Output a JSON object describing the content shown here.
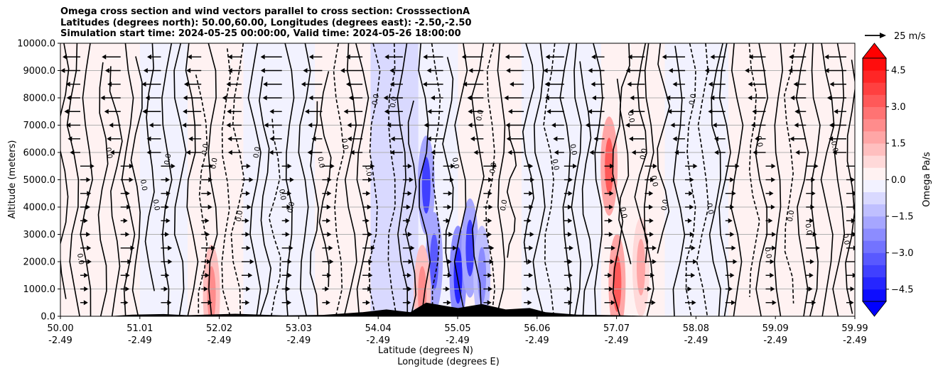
{
  "chart_data": {
    "type": "heatmap",
    "title_lines": [
      "Omega cross section and wind vectors parallel to cross section: CrosssectionA",
      "Latitudes (degrees north): 50.00,60.00, Longitudes (degrees east): -2.50,-2.50",
      "Simulation start time: 2024-05-25 00:00:00, Valid time: 2024-05-26 18:00:00"
    ],
    "ylabel": "Altitude (meters)",
    "xlabel_lines": [
      "Latitude (degrees N)",
      "Longitude (degrees E)"
    ],
    "ylim": [
      0,
      10000
    ],
    "yticks": [
      "0.0",
      "1000.0",
      "2000.0",
      "3000.0",
      "4000.0",
      "5000.0",
      "6000.0",
      "7000.0",
      "8000.0",
      "9000.0",
      "10000.0"
    ],
    "x_range": [
      50.0,
      59.99
    ],
    "xticks": [
      {
        "lat": "50.00",
        "lon": "-2.49"
      },
      {
        "lat": "51.01",
        "lon": "-2.49"
      },
      {
        "lat": "52.02",
        "lon": "-2.49"
      },
      {
        "lat": "53.03",
        "lon": "-2.49"
      },
      {
        "lat": "54.04",
        "lon": "-2.49"
      },
      {
        "lat": "55.05",
        "lon": "-2.49"
      },
      {
        "lat": "56.06",
        "lon": "-2.49"
      },
      {
        "lat": "57.07",
        "lon": "-2.49"
      },
      {
        "lat": "58.08",
        "lon": "-2.49"
      },
      {
        "lat": "59.09",
        "lon": "-2.49"
      },
      {
        "lat": "59.99",
        "lon": "-2.49"
      }
    ],
    "grid": "horizontal",
    "colorbar": {
      "label": "Omega Pa/s",
      "range": [
        -5.0,
        5.0
      ],
      "step": 0.5,
      "ticks": [
        "-4.5",
        "-3.0",
        "-1.5",
        "0.0",
        "1.5",
        "3.0",
        "4.5"
      ],
      "colormap": "bwr",
      "extend": "both"
    },
    "wind_reference": {
      "label": "25 m/s",
      "speed": 25
    },
    "contour_label": "0.0",
    "terrain_color": "#000000",
    "omega_bands": [
      {
        "lat_from": 50.0,
        "lat_to": 50.5,
        "value": 0.3
      },
      {
        "lat_from": 50.5,
        "lat_to": 51.0,
        "value": 0.2
      },
      {
        "lat_from": 51.0,
        "lat_to": 51.6,
        "value": -0.3
      },
      {
        "lat_from": 51.6,
        "lat_to": 52.3,
        "value": 0.3
      },
      {
        "lat_from": 52.3,
        "lat_to": 53.2,
        "value": -0.3
      },
      {
        "lat_from": 53.2,
        "lat_to": 53.9,
        "value": 0.3
      },
      {
        "lat_from": 53.9,
        "lat_to": 54.5,
        "value": -0.5
      },
      {
        "lat_from": 54.5,
        "lat_to": 55.0,
        "value": -0.4
      },
      {
        "lat_from": 55.0,
        "lat_to": 55.8,
        "value": 0.3
      },
      {
        "lat_from": 55.8,
        "lat_to": 56.8,
        "value": -0.3
      },
      {
        "lat_from": 56.8,
        "lat_to": 57.6,
        "value": 0.4
      },
      {
        "lat_from": 57.6,
        "lat_to": 58.4,
        "value": -0.2
      },
      {
        "lat_from": 58.4,
        "lat_to": 59.99,
        "value": 0.25
      }
    ],
    "omega_cells": [
      {
        "lat": 54.6,
        "alt": 4800,
        "value": -3.5
      },
      {
        "lat": 54.7,
        "alt": 2000,
        "value": -3.0
      },
      {
        "lat": 55.0,
        "alt": 1500,
        "value": -4.0
      },
      {
        "lat": 55.15,
        "alt": 2500,
        "value": -3.5
      },
      {
        "lat": 54.55,
        "alt": 800,
        "value": 2.0
      },
      {
        "lat": 56.9,
        "alt": 5500,
        "value": 3.0
      },
      {
        "lat": 57.0,
        "alt": 1200,
        "value": 3.0
      },
      {
        "lat": 51.9,
        "alt": 800,
        "value": 2.0
      },
      {
        "lat": 55.3,
        "alt": 1500,
        "value": -2.0
      },
      {
        "lat": 57.3,
        "alt": 1800,
        "value": 1.5
      }
    ],
    "wind_u_by_altitude": [
      {
        "alt": 500,
        "u": 8
      },
      {
        "alt": 1000,
        "u": 6
      },
      {
        "alt": 1500,
        "u": 8
      },
      {
        "alt": 2000,
        "u": 10
      },
      {
        "alt": 2500,
        "u": 12
      },
      {
        "alt": 3000,
        "u": 8
      },
      {
        "alt": 3500,
        "u": 6
      },
      {
        "alt": 4000,
        "u": 8
      },
      {
        "alt": 4500,
        "u": 8
      },
      {
        "alt": 5000,
        "u": 10
      },
      {
        "alt": 5500,
        "u": 12
      },
      {
        "alt": 6000,
        "u": -14
      },
      {
        "alt": 6500,
        "u": -16
      },
      {
        "alt": 7000,
        "u": -18
      },
      {
        "alt": 7500,
        "u": -18
      },
      {
        "alt": 8000,
        "u": -20
      },
      {
        "alt": 8500,
        "u": -20
      },
      {
        "alt": 9000,
        "u": -22
      },
      {
        "alt": 9500,
        "u": -22
      }
    ],
    "terrain": [
      {
        "lat": 50.0,
        "alt": 0
      },
      {
        "lat": 50.6,
        "alt": 0
      },
      {
        "lat": 50.9,
        "alt": 60
      },
      {
        "lat": 51.3,
        "alt": 80
      },
      {
        "lat": 51.6,
        "alt": 40
      },
      {
        "lat": 52.2,
        "alt": 90
      },
      {
        "lat": 52.8,
        "alt": 30
      },
      {
        "lat": 53.3,
        "alt": 50
      },
      {
        "lat": 53.8,
        "alt": 150
      },
      {
        "lat": 54.1,
        "alt": 250
      },
      {
        "lat": 54.4,
        "alt": 150
      },
      {
        "lat": 54.6,
        "alt": 500
      },
      {
        "lat": 54.8,
        "alt": 400
      },
      {
        "lat": 55.0,
        "alt": 300
      },
      {
        "lat": 55.3,
        "alt": 450
      },
      {
        "lat": 55.6,
        "alt": 250
      },
      {
        "lat": 55.9,
        "alt": 300
      },
      {
        "lat": 56.1,
        "alt": 150
      },
      {
        "lat": 56.5,
        "alt": 60
      },
      {
        "lat": 57.0,
        "alt": 40
      },
      {
        "lat": 57.5,
        "alt": 0
      },
      {
        "lat": 59.99,
        "alt": 0
      }
    ]
  }
}
